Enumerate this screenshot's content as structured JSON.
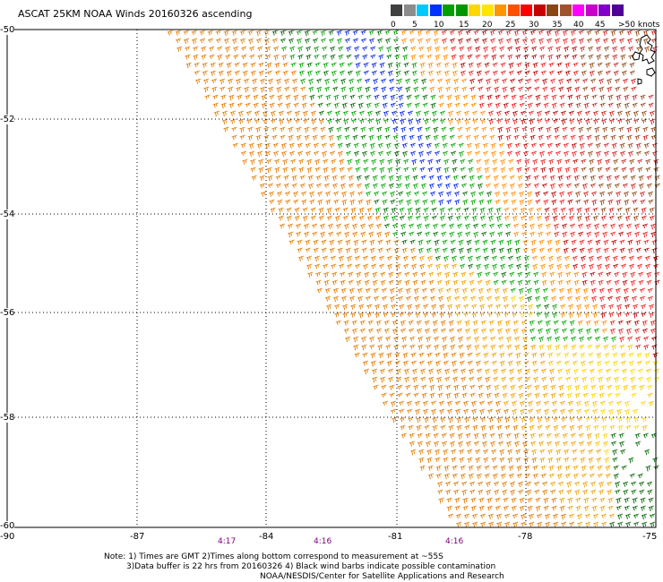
{
  "title": "ASCAT 25KM NOAA Winds 20160326 ascending",
  "legend": {
    "colors": [
      "#404040",
      "#8c8c8c",
      "#00c8ff",
      "#0032ff",
      "#00a000",
      "#009600",
      "#ffd700",
      "#ffe600",
      "#ff9600",
      "#ff5000",
      "#ff0000",
      "#c80000",
      "#8b4513",
      "#a0522d",
      "#ff00ff",
      "#c800c8",
      "#8200c8",
      "#500096"
    ],
    "labels": [
      "0",
      "5",
      "10",
      "15",
      "20",
      "25",
      "30",
      "35",
      "40",
      "45",
      ">50 knots"
    ]
  },
  "axes": {
    "lon_labels": [
      "-90",
      "-87",
      "-84",
      "-81",
      "-78",
      "-75"
    ],
    "lat_labels": [
      "-50",
      "-52",
      "-54",
      "-56",
      "-58",
      "-60"
    ]
  },
  "time_labels": [
    "4:17",
    "4:16",
    "4:16"
  ],
  "notes": [
    "Note: 1) Times are GMT 2)Times along bottom correspond to measurement at ~55S",
    "3)Data buffer is 22 hrs from 20160326 4) Black wind barbs indicate possible contamination",
    "NOAA/NESDIS/Center for Satellite Applications and Research"
  ]
}
